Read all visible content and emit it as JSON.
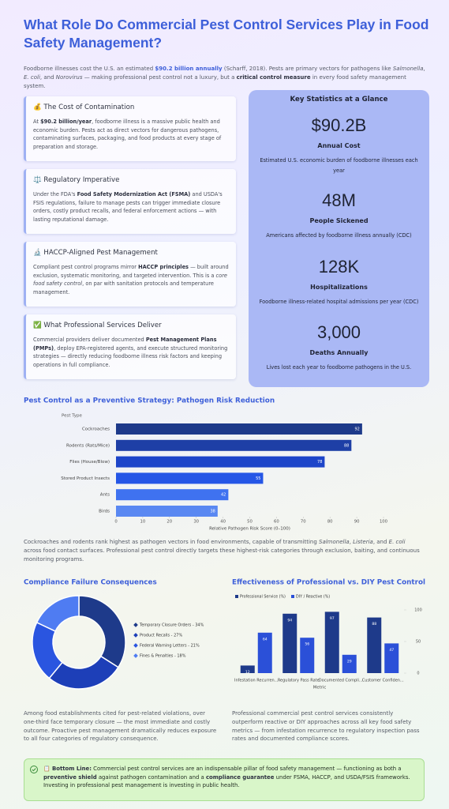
{
  "title": "What Role Do Commercial Pest Control Services Play in Food Safety Management?",
  "intro": [
    "Foodborne illnesses cost the U.S. an estimated ",
    {
      "text": "$90.2 billion annually",
      "style": "bold-blue"
    },
    " (Scharff, 2018). Pests are primary vectors for pathogens like ",
    {
      "text": "Salmonella",
      "style": "italic"
    },
    ", ",
    {
      "text": "E. coli",
      "style": "italic"
    },
    ", and ",
    {
      "text": "Norovirus",
      "style": "italic"
    },
    " — making professional pest control not a luxury, but a ",
    {
      "text": "critical control measure",
      "style": "bold"
    },
    " in every food safety management system."
  ],
  "cards": [
    {
      "heading": "💰 The Cost of Contamination",
      "body": [
        "At ",
        {
          "text": "$90.2 billion/year",
          "style": "bold"
        },
        ", foodborne illness is a massive public health and economic burden. Pests act as direct vectors for dangerous pathogens, contaminating surfaces, packaging, and food products at every stage of preparation and storage."
      ]
    },
    {
      "heading": "⚖️ Regulatory Imperative",
      "body": [
        "Under the FDA's ",
        {
          "text": "Food Safety Modernization Act (FSMA)",
          "style": "bold"
        },
        " and USDA's FSIS regulations, failure to manage pests can trigger immediate closure orders, costly product recalls, and federal enforcement actions — with lasting reputational damage."
      ]
    },
    {
      "heading": "🔬 HACCP-Aligned Pest Management",
      "body": [
        "Compliant pest control programs mirror ",
        {
          "text": "HACCP principles",
          "style": "bold"
        },
        " — built around exclusion, systematic monitoring, and targeted intervention. This is a ",
        {
          "text": "core food safety control",
          "style": "italic"
        },
        ", on par with sanitation protocols and temperature management."
      ]
    },
    {
      "heading": "✅ What Professional Services Deliver",
      "body": [
        "Commercial providers deliver documented ",
        {
          "text": "Pest Management Plans (PMPs)",
          "style": "bold"
        },
        ", deploy EPA-registered agents, and execute structured monitoring strategies — directly reducing foodborne illness risk factors and keeping operations in full compliance."
      ]
    }
  ],
  "stats": {
    "title": "Key Statistics at a Glance",
    "items": [
      {
        "value": "$90.2B",
        "label": "Annual Cost",
        "description": "Estimated U.S. economic burden of foodborne illnesses each year"
      },
      {
        "value": "48M",
        "label": "People Sickened",
        "description": "Americans affected by foodborne illness annually (CDC)"
      },
      {
        "value": "128K",
        "label": "Hospitalizations",
        "description": "Foodborne illness-related hospital admissions per year (CDC)"
      },
      {
        "value": "3,000",
        "label": "Deaths Annually",
        "description": "Lives lost each year to foodborne pathogens in the U.S."
      }
    ]
  },
  "chart_data": [
    {
      "type": "hbar",
      "title": "Pest Control as a Preventive Strategy: Pathogen Risk Reduction",
      "y_label": "Pest Type",
      "x_label": "Relative Pathogen Risk Score (0–100)",
      "categories": [
        "Cockroaches",
        "Rodents (Rats/Mice)",
        "Flies (House/Blow)",
        "Stored Product Insects",
        "Ants",
        "Birds"
      ],
      "values": [
        92,
        88,
        78,
        55,
        42,
        38
      ],
      "colors": [
        "#1e3a8a",
        "#1e3fa6",
        "#1d45c9",
        "#2556e6",
        "#3f72f0",
        "#5a88f2"
      ],
      "xlim": [
        0,
        100
      ],
      "xticks": [
        0,
        10,
        20,
        30,
        40,
        50,
        60,
        70,
        80,
        90,
        100
      ]
    },
    {
      "type": "pie",
      "title": "Compliance Failure Consequences",
      "donut": true,
      "legend": "right",
      "categories": [
        "Temporary Closure Orders - 34%",
        "Product Recalls - 27%",
        "Federal Warning Letters - 21%",
        "Fines & Penalties - 18%"
      ],
      "values": [
        34,
        27,
        21,
        18
      ],
      "colors": [
        "#1e3a8a",
        "#1d3fb8",
        "#2a55e0",
        "#4f7cf2"
      ]
    },
    {
      "type": "bar",
      "title": "Effectiveness of Professional vs. DIY Pest Control",
      "x_label": "Metric",
      "legend": "top-left",
      "categories": [
        "Infestation Recurren...",
        "Regulatory Pass Rate",
        "Documented Compli...",
        "Customer Confiden..."
      ],
      "series": [
        {
          "name": "Professional Service (%)",
          "color": "#1e3a8a",
          "values": [
            12,
            94,
            97,
            88
          ]
        },
        {
          "name": "DIY / Reactive (%)",
          "color": "#2b50d8",
          "values": [
            64,
            56,
            29,
            47
          ]
        }
      ],
      "ylim": [
        0,
        100
      ],
      "yticks": [
        0,
        50,
        100
      ]
    }
  ],
  "chart_notes": [
    [
      "Cockroaches and rodents rank highest as pathogen vectors in food environments, capable of transmitting ",
      {
        "text": "Salmonella",
        "style": "italic"
      },
      ", ",
      {
        "text": "Listeria",
        "style": "italic"
      },
      ", and ",
      {
        "text": "E. coli",
        "style": "italic"
      },
      " across food contact surfaces. Professional pest control directly targets these highest-risk categories through exclusion, baiting, and continuous monitoring programs."
    ],
    [
      "Among food establishments cited for pest-related violations, over one-third face temporary closure — the most immediate and costly outcome. Proactive pest management dramatically reduces exposure to all four categories of regulatory consequence."
    ],
    [
      "Professional commercial pest control services consistently outperform reactive or DIY approaches across all key food safety metrics — from infestation recurrence to regulatory inspection pass rates and documented compliance scores."
    ]
  ],
  "bottom_line": [
    {
      "text": "📋 Bottom Line:",
      "style": "bold"
    },
    " Commercial pest control services are an indispensable pillar of food safety management — functioning as both a ",
    {
      "text": "preventive shield",
      "style": "bold"
    },
    " against pathogen contamination and a ",
    {
      "text": "compliance guarantee",
      "style": "bold"
    },
    " under FSMA, HACCP, and USDA/FSIS frameworks. Investing in professional pest management is investing in public health."
  ]
}
